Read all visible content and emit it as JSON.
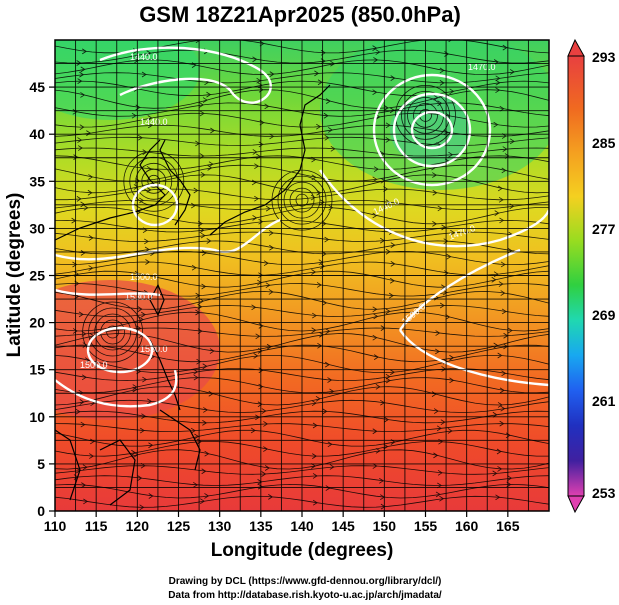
{
  "title": "GSM 18Z21Apr2025 (850.0hPa)",
  "xlabel": "Longitude (degrees)",
  "ylabel": "Latitude (degrees)",
  "x_ticks": [
    "110",
    "115",
    "120",
    "125",
    "130",
    "135",
    "140",
    "145",
    "150",
    "155",
    "160",
    "165"
  ],
  "y_ticks": [
    "0",
    "5",
    "10",
    "15",
    "20",
    "25",
    "30",
    "35",
    "40",
    "45"
  ],
  "colorbar": {
    "labels": [
      "293",
      "285",
      "277",
      "269",
      "261",
      "253"
    ],
    "min": 253,
    "max": 293,
    "colors": [
      "#d63aa8",
      "#2020a0",
      "#2050e0",
      "#19a0f0",
      "#20e0c0",
      "#5ad83a",
      "#b8e020",
      "#f8d020",
      "#f8a020",
      "#f06020",
      "#e83a3a"
    ]
  },
  "contour_labels": [
    "1440.0",
    "1440.0",
    "1440.0",
    "1470.0",
    "1470.0",
    "1500.0",
    "1500.0",
    "1500.0",
    "1530.0",
    "1530.0"
  ],
  "credits": [
    "Drawing by DCL (https://www.gfd-dennou.org/library/dcl/)",
    "Data from http://database.rish.kyoto-u.ac.jp/arch/jmadata/"
  ],
  "map_data": {
    "lon_range": [
      110,
      170
    ],
    "lat_range": [
      0,
      50
    ],
    "field": "temperature (K) with geopotential height contours and streamlines",
    "highs_lows": [
      {
        "kind": "low",
        "lon": 155,
        "lat": 42
      },
      {
        "kind": "low",
        "lon": 140,
        "lat": 33
      },
      {
        "kind": "low",
        "lon": 122,
        "lat": 35
      },
      {
        "kind": "low",
        "lon": 117,
        "lat": 19
      }
    ]
  }
}
